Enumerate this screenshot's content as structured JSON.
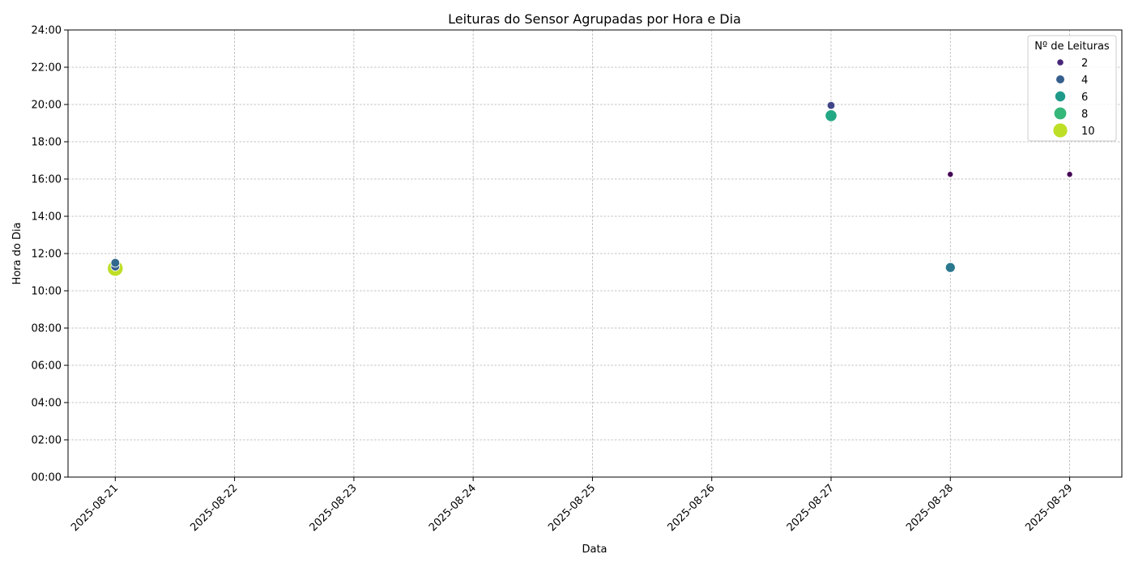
{
  "chart_data": {
    "type": "scatter",
    "title": "Leituras do Sensor Agrupadas por Hora e Dia",
    "xlabel": "Data",
    "ylabel": "Hora do Dia",
    "x_ticks": [
      "2025-08-21",
      "2025-08-22",
      "2025-08-23",
      "2025-08-24",
      "2025-08-25",
      "2025-08-26",
      "2025-08-27",
      "2025-08-28",
      "2025-08-29"
    ],
    "y_ticks": [
      "00:00",
      "02:00",
      "04:00",
      "06:00",
      "08:00",
      "10:00",
      "12:00",
      "14:00",
      "16:00",
      "18:00",
      "20:00",
      "22:00",
      "24:00"
    ],
    "xlim": [
      "2025-08-20T14:30",
      "2025-08-29T10:30"
    ],
    "ylim": [
      0,
      24
    ],
    "grid": true,
    "legend": {
      "title": "Nº de Leituras",
      "position": "top-right",
      "entries": [
        {
          "label": "2",
          "value": 2,
          "color": "#482677"
        },
        {
          "label": "4",
          "value": 4,
          "color": "#355f8d"
        },
        {
          "label": "6",
          "value": 6,
          "color": "#1f9a8a"
        },
        {
          "label": "8",
          "value": 8,
          "color": "#35b779"
        },
        {
          "label": "10",
          "value": 10,
          "color": "#bddf26"
        }
      ]
    },
    "points": [
      {
        "date": "2025-08-21",
        "hour": 11.2,
        "count": 11,
        "color": "#bddf26"
      },
      {
        "date": "2025-08-21",
        "hour": 11.3,
        "count": 4,
        "color": "#355f8d"
      },
      {
        "date": "2025-08-21",
        "hour": 11.5,
        "count": 4,
        "color": "#31688e"
      },
      {
        "date": "2025-08-27",
        "hour": 19.95,
        "count": 3,
        "color": "#404688"
      },
      {
        "date": "2025-08-27",
        "hour": 19.4,
        "count": 7,
        "color": "#22a884"
      },
      {
        "date": "2025-08-28",
        "hour": 16.25,
        "count": 1,
        "color": "#440154"
      },
      {
        "date": "2025-08-28",
        "hour": 11.25,
        "count": 5,
        "color": "#2a788e"
      },
      {
        "date": "2025-08-29",
        "hour": 16.25,
        "count": 1,
        "color": "#440154"
      }
    ]
  }
}
